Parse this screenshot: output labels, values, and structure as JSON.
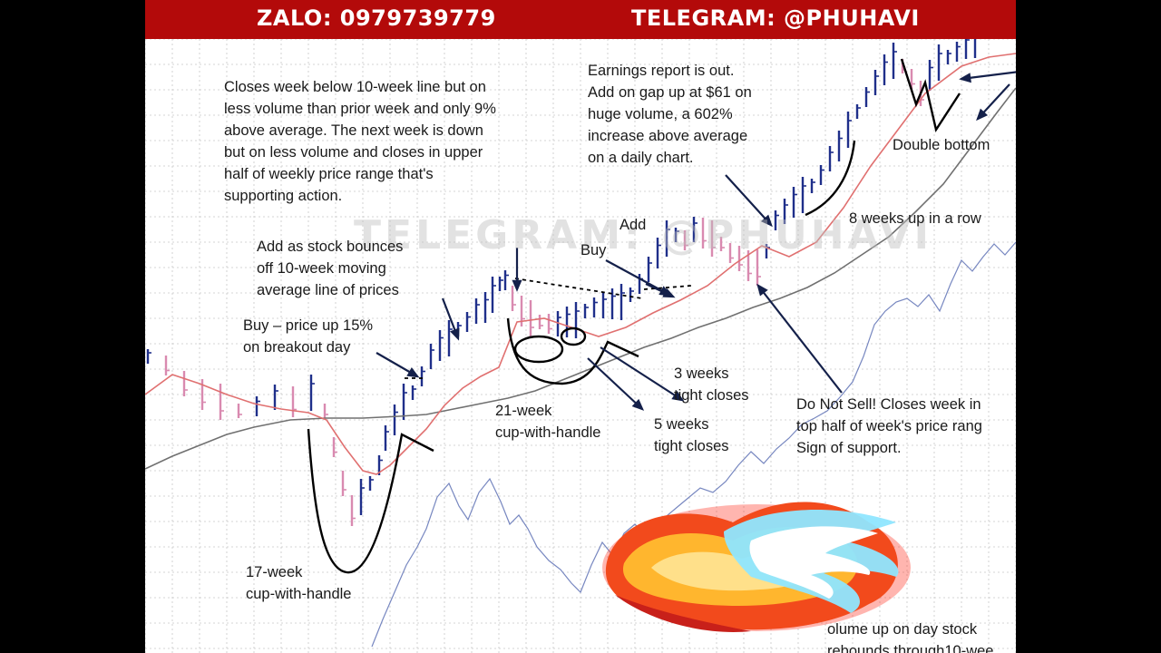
{
  "banner": {
    "zalo": "ZALO: 0979739779",
    "telegram": "TELEGRAM: @PHUHAVI",
    "color": "#b30a0a"
  },
  "watermark": "TELEGRAM: @PHUHAVI",
  "decoration": "fire-sticker-icon",
  "colors": {
    "up_bar": "#1f2f8a",
    "down_bar": "#d98ab0",
    "ma10": "#e07070",
    "ma40": "#707070",
    "rs_line": "#7787c0",
    "grid": "#c8c8c8"
  },
  "chart_data": {
    "type": "line",
    "notes": {
      "closes_below": [
        "Closes week below 10-week line but on",
        "less volume than prior week and only 9%",
        "above average. The next week is down",
        "but on less volume and closes in upper",
        "half of weekly price range that's",
        "supporting action."
      ],
      "earnings": [
        "Earnings report is out.",
        "Add on gap up at $61 on",
        "huge volume, a 602%",
        "increase above average",
        "on a daily chart."
      ],
      "double_bottom": "Double bottom",
      "eight_weeks": "8 weeks up in a row",
      "add_bounce": [
        "Add as stock bounces",
        "off 10-week moving",
        "average line of prices"
      ],
      "add": "Add",
      "buy": "Buy",
      "buy_breakout": [
        "Buy – price up 15%",
        "on breakout day"
      ],
      "three_weeks": [
        "3 weeks",
        "tight closes"
      ],
      "cup21": [
        "21-week",
        "cup-with-handle"
      ],
      "five_weeks": [
        "5 weeks",
        "tight closes"
      ],
      "do_not_sell": [
        "Do Not Sell! Closes week in",
        "top half of week's price rang",
        "Sign of support."
      ],
      "cup17": [
        "17-week",
        "cup-with-handle"
      ],
      "volume_up": [
        "olume up on day stock",
        "rebounds through10-wee"
      ]
    }
  }
}
